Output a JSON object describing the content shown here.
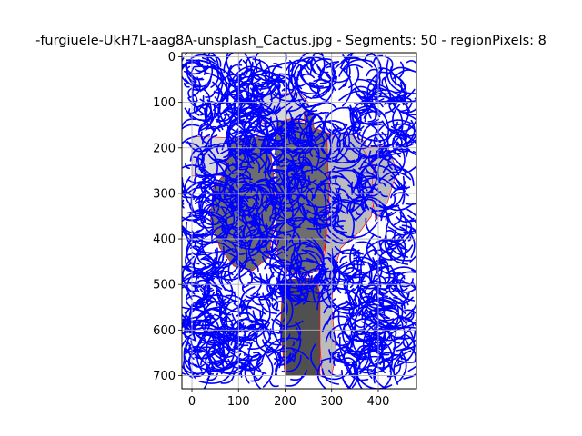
{
  "chart_data": {
    "type": "image",
    "title": "-furgiuele-UkH7L-aag8A-unsplash_Cactus.jpg - Segments: 50 - regionPixels: 8",
    "xlim": [
      -21.5,
      482
    ],
    "ylim": [
      729,
      -9
    ],
    "x_ticks": [
      0,
      100,
      200,
      300,
      400
    ],
    "y_ticks": [
      0,
      100,
      200,
      300,
      400,
      500,
      600,
      700
    ],
    "grid": true,
    "colors": {
      "overlay_stroke": "#0000ff",
      "boundary": "#ff0000",
      "light_region": "#d8d8d8",
      "mid_region": "#6e6e6e",
      "pale_region": "#bcbcbc",
      "dark_region": "#505050",
      "background": "#ffffff"
    }
  }
}
